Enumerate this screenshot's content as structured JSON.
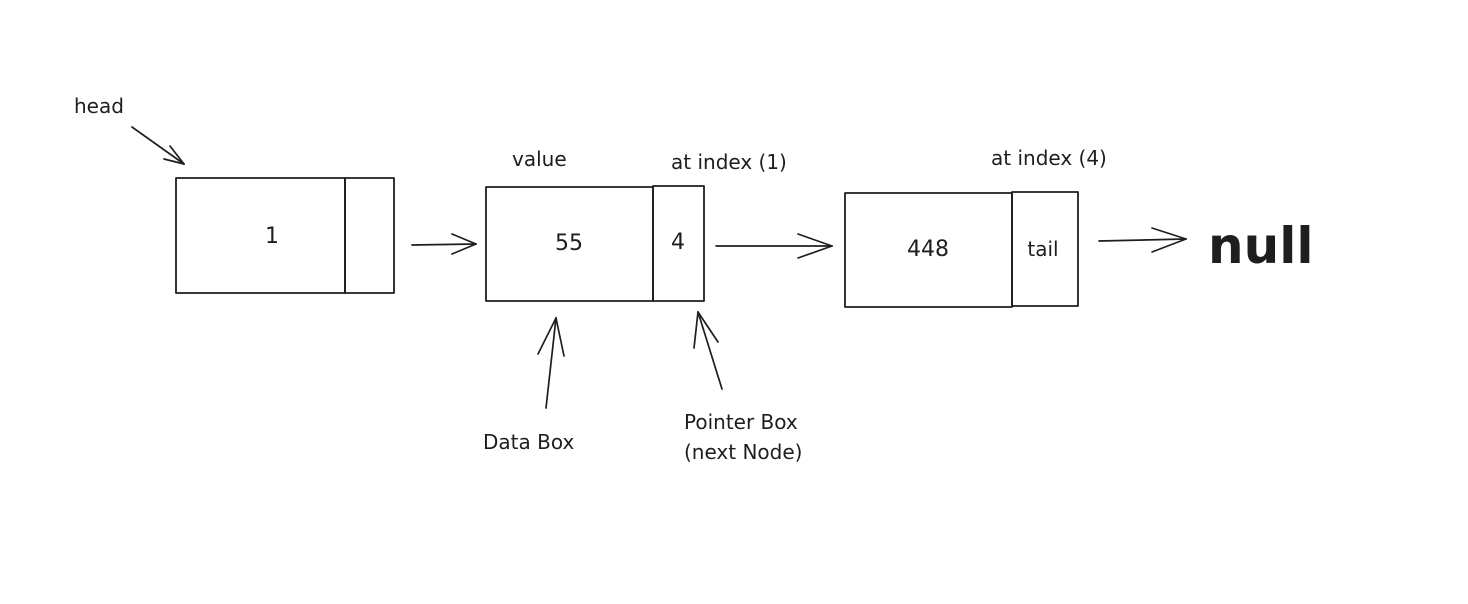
{
  "diagram": {
    "labels": {
      "head": "head",
      "value": "value",
      "index_1": "at index (1)",
      "index_4": "at index (4)",
      "data_box": "Data Box",
      "pointer_box_line1": "Pointer Box",
      "pointer_box_line2": "(next Node)",
      "null": "null"
    },
    "nodes": [
      {
        "value": "1",
        "pointer": ""
      },
      {
        "value": "55",
        "pointer": "4"
      },
      {
        "value": "448",
        "pointer": "tail"
      }
    ],
    "colors": {
      "stroke": "#1e1e1e",
      "background": "#ffffff"
    }
  }
}
